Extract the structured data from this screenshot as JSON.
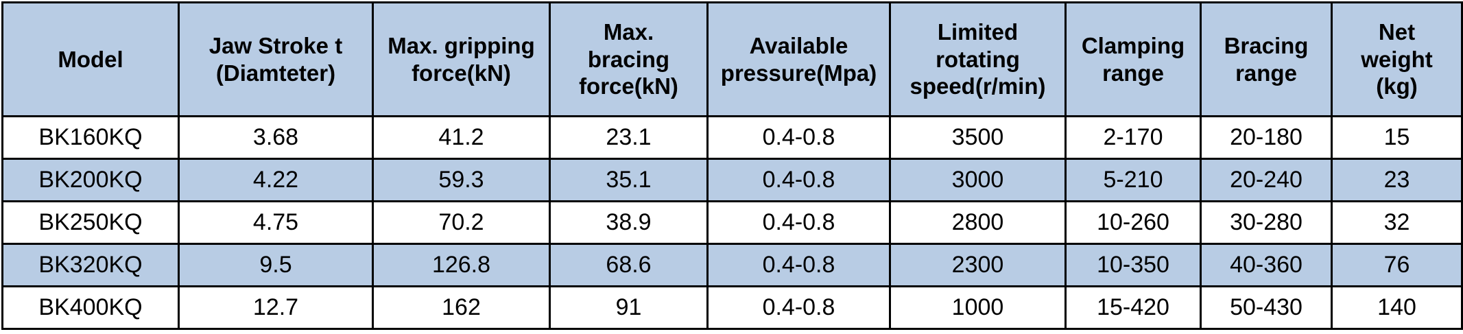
{
  "colors": {
    "header_fill": "#b8cce4",
    "shaded_row_fill": "#b8cce4",
    "plain_row_fill": "#ffffff",
    "border": "#000000",
    "text": "#000000"
  },
  "table": {
    "headers": [
      [
        "Model"
      ],
      [
        "Jaw Stroke t",
        "(Diamteter)"
      ],
      [
        "Max. gripping",
        "force(kN)"
      ],
      [
        "Max.",
        "bracing",
        "force(kN)"
      ],
      [
        "Available",
        "pressure(Mpa)"
      ],
      [
        "Limited",
        "rotating",
        "speed(r/min)"
      ],
      [
        "Clamping",
        "range"
      ],
      [
        "Bracing",
        "range"
      ],
      [
        "Net",
        "weight",
        "(kg)"
      ]
    ],
    "rows": [
      [
        "BK160KQ",
        "3.68",
        "41.2",
        "23.1",
        "0.4-0.8",
        "3500",
        "2-170",
        "20-180",
        "15"
      ],
      [
        "BK200KQ",
        "4.22",
        "59.3",
        "35.1",
        "0.4-0.8",
        "3000",
        "5-210",
        "20-240",
        "23"
      ],
      [
        "BK250KQ",
        "4.75",
        "70.2",
        "38.9",
        "0.4-0.8",
        "2800",
        "10-260",
        "30-280",
        "32"
      ],
      [
        "BK320KQ",
        "9.5",
        "126.8",
        "68.6",
        "0.4-0.8",
        "2300",
        "10-350",
        "40-360",
        "76"
      ],
      [
        "BK400KQ",
        "12.7",
        "162",
        "91",
        "0.4-0.8",
        "1000",
        "15-420",
        "50-430",
        "140"
      ]
    ]
  }
}
